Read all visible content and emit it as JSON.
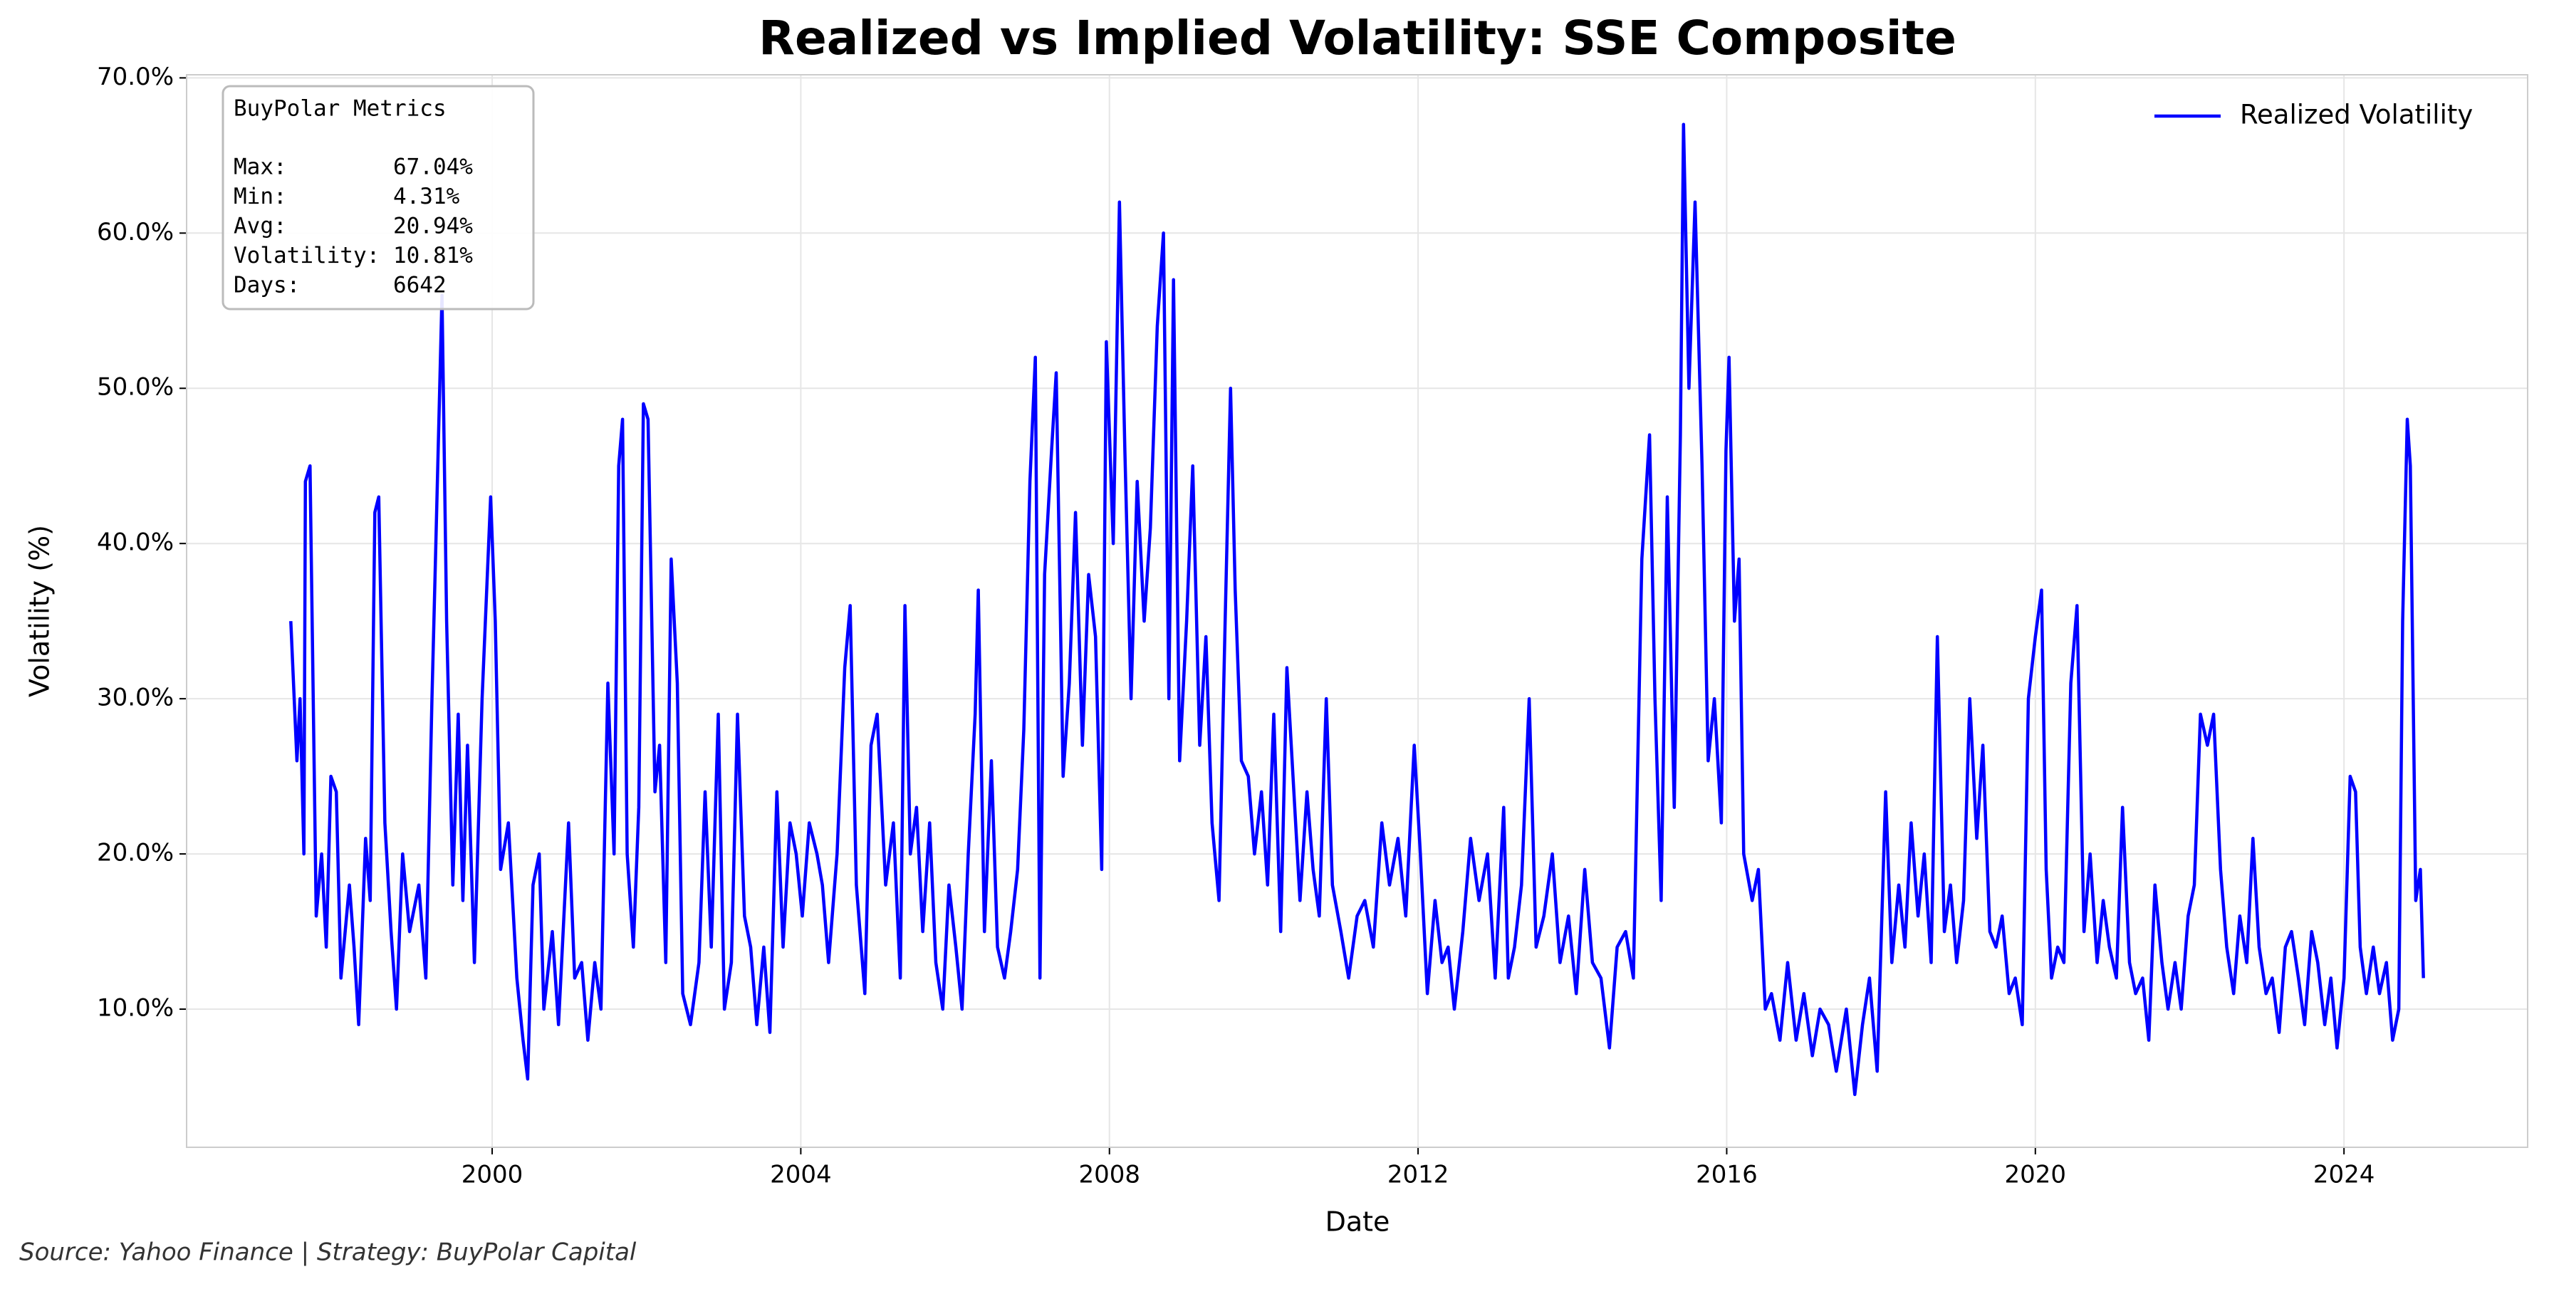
{
  "chart_data": {
    "type": "line",
    "title": "Realized vs Implied Volatility: SSE Composite",
    "x_label": "Date",
    "y_label": "Volatility (%)",
    "source": "Source: Yahoo Finance | Strategy: BuyPolar Capital",
    "metrics_box": [
      "BuyPolar Metrics",
      "Max:        67.04%",
      "Min:        4.31%",
      "Avg:        20.94%",
      "Volatility: 10.81%",
      "Days:       6642"
    ],
    "legend": "upper right",
    "grid": true,
    "xlim": [
      1996.04,
      2026.38
    ],
    "xticks": [
      2000,
      2004,
      2008,
      2012,
      2016,
      2020,
      2024
    ],
    "ylim": [
      1.1,
      70.2
    ],
    "yticks": [
      {
        "value": 10,
        "label": "10.0%"
      },
      {
        "value": 20,
        "label": "20.0%"
      },
      {
        "value": 30,
        "label": "30.0%"
      },
      {
        "value": 40,
        "label": "40.0%"
      },
      {
        "value": 50,
        "label": "50.0%"
      },
      {
        "value": 60,
        "label": "60.0%"
      },
      {
        "value": 70,
        "label": "70.0%"
      }
    ],
    "x": [
      1997.39,
      1997.47,
      1997.51,
      1997.56,
      1997.58,
      1997.64,
      1997.72,
      1997.79,
      1997.85,
      1997.91,
      1997.98,
      1998.04,
      1998.15,
      1998.21,
      1998.27,
      1998.36,
      1998.42,
      1998.48,
      1998.53,
      1998.61,
      1998.69,
      1998.76,
      1998.84,
      1998.93,
      1999.05,
      1999.14,
      1999.22,
      1999.26,
      1999.35,
      1999.41,
      1999.49,
      1999.56,
      1999.62,
      1999.68,
      1999.77,
      1999.87,
      1999.98,
      2000.04,
      2000.11,
      2000.21,
      2000.32,
      2000.4,
      2000.46,
      2000.53,
      2000.61,
      2000.67,
      2000.78,
      2000.86,
      2000.99,
      2001.07,
      2001.16,
      2001.24,
      2001.33,
      2001.41,
      2001.5,
      2001.58,
      2001.64,
      2001.69,
      2001.75,
      2001.83,
      2001.9,
      2001.96,
      2002.02,
      2002.11,
      2002.17,
      2002.25,
      2002.32,
      2002.4,
      2002.47,
      2002.57,
      2002.68,
      2002.76,
      2002.84,
      2002.93,
      2003.01,
      2003.1,
      2003.18,
      2003.27,
      2003.35,
      2003.43,
      2003.52,
      2003.6,
      2003.69,
      2003.77,
      2003.86,
      2003.94,
      2004.02,
      2004.11,
      2004.21,
      2004.28,
      2004.36,
      2004.47,
      2004.57,
      2004.64,
      2004.72,
      2004.83,
      2004.91,
      2004.99,
      2005.1,
      2005.2,
      2005.29,
      2005.35,
      2005.42,
      2005.5,
      2005.58,
      2005.67,
      2005.75,
      2005.84,
      2005.92,
      2006.01,
      2006.09,
      2006.17,
      2006.26,
      2006.3,
      2006.38,
      2006.47,
      2006.55,
      2006.64,
      2006.72,
      2006.81,
      2006.89,
      2006.97,
      2007.04,
      2007.1,
      2007.16,
      2007.25,
      2007.31,
      2007.4,
      2007.48,
      2007.56,
      2007.65,
      2007.73,
      2007.82,
      2007.9,
      2007.96,
      2008.05,
      2008.13,
      2008.2,
      2008.28,
      2008.36,
      2008.45,
      2008.53,
      2008.62,
      2008.7,
      2008.77,
      2008.83,
      2008.91,
      2009.0,
      2009.08,
      2009.17,
      2009.25,
      2009.33,
      2009.42,
      2009.5,
      2009.57,
      2009.63,
      2009.71,
      2009.8,
      2009.88,
      2009.97,
      2010.05,
      2010.13,
      2010.22,
      2010.3,
      2010.39,
      2010.47,
      2010.56,
      2010.64,
      2010.72,
      2010.81,
      2010.89,
      2011.0,
      2011.1,
      2011.21,
      2011.31,
      2011.42,
      2011.53,
      2011.63,
      2011.74,
      2011.84,
      2011.95,
      2012.03,
      2012.12,
      2012.22,
      2012.31,
      2012.39,
      2012.47,
      2012.58,
      2012.68,
      2012.79,
      2012.9,
      2013.0,
      2013.11,
      2013.17,
      2013.25,
      2013.34,
      2013.44,
      2013.53,
      2013.63,
      2013.74,
      2013.84,
      2013.95,
      2014.05,
      2014.16,
      2014.26,
      2014.37,
      2014.48,
      2014.58,
      2014.69,
      2014.79,
      2014.9,
      2015.0,
      2015.07,
      2015.15,
      2015.23,
      2015.32,
      2015.4,
      2015.44,
      2015.51,
      2015.59,
      2015.68,
      2015.76,
      2015.84,
      2015.93,
      2015.99,
      2016.03,
      2016.1,
      2016.16,
      2016.22,
      2016.33,
      2016.41,
      2016.5,
      2016.58,
      2016.69,
      2016.79,
      2016.9,
      2017.0,
      2017.11,
      2017.21,
      2017.32,
      2017.42,
      2017.55,
      2017.66,
      2017.76,
      2017.85,
      2017.95,
      2018.06,
      2018.14,
      2018.23,
      2018.31,
      2018.39,
      2018.48,
      2018.56,
      2018.65,
      2018.73,
      2018.82,
      2018.9,
      2018.98,
      2019.07,
      2019.15,
      2019.24,
      2019.32,
      2019.41,
      2019.49,
      2019.57,
      2019.66,
      2019.74,
      2019.83,
      2019.91,
      2020.0,
      2020.08,
      2020.14,
      2020.21,
      2020.29,
      2020.37,
      2020.46,
      2020.54,
      2020.63,
      2020.71,
      2020.8,
      2020.88,
      2020.96,
      2021.05,
      2021.13,
      2021.22,
      2021.3,
      2021.39,
      2021.47,
      2021.55,
      2021.64,
      2021.72,
      2021.81,
      2021.89,
      2021.98,
      2022.06,
      2022.14,
      2022.23,
      2022.31,
      2022.4,
      2022.48,
      2022.57,
      2022.65,
      2022.74,
      2022.82,
      2022.9,
      2022.99,
      2023.07,
      2023.16,
      2023.24,
      2023.32,
      2023.41,
      2023.49,
      2023.58,
      2023.66,
      2023.75,
      2023.83,
      2023.91,
      2024.0,
      2024.08,
      2024.15,
      2024.21,
      2024.29,
      2024.38,
      2024.46,
      2024.55,
      2024.63,
      2024.71,
      2024.76,
      2024.82,
      2024.86,
      2024.93,
      2024.99,
      2025.03
    ],
    "series": [
      {
        "name": "Realized Volatility",
        "color": "#0000ff",
        "values": [
          35,
          26,
          30,
          20,
          44,
          45,
          16,
          20,
          14,
          25,
          24,
          12,
          18,
          14,
          9,
          21,
          17,
          42,
          43,
          22,
          15,
          10,
          20,
          15,
          18,
          12,
          30,
          38,
          56,
          35,
          18,
          29,
          17,
          27,
          13,
          30,
          43,
          35,
          19,
          22,
          12,
          8,
          5.5,
          18,
          20,
          10,
          15,
          9,
          22,
          12,
          13,
          8,
          13,
          10,
          31,
          20,
          45,
          48,
          20,
          14,
          23,
          49,
          48,
          24,
          27,
          13,
          39,
          31,
          11,
          9,
          13,
          24,
          14,
          29,
          10,
          13,
          29,
          16,
          14,
          9,
          14,
          8.5,
          24,
          14,
          22,
          20,
          16,
          22,
          20,
          18,
          13,
          20,
          32,
          36,
          18,
          11,
          27,
          29,
          18,
          22,
          12,
          36,
          20,
          23,
          15,
          22,
          13,
          10,
          18,
          14,
          10,
          20,
          29,
          37,
          15,
          26,
          14,
          12,
          15,
          19,
          28,
          44,
          52,
          12,
          38,
          46,
          51,
          25,
          31,
          42,
          27,
          38,
          34,
          19,
          53,
          40,
          62,
          46,
          30,
          44,
          35,
          41,
          54,
          60,
          30,
          57,
          26,
          35,
          45,
          27,
          34,
          22,
          17,
          35,
          50,
          37,
          26,
          25,
          20,
          24,
          18,
          29,
          15,
          32,
          24,
          17,
          24,
          19,
          16,
          30,
          18,
          15,
          12,
          16,
          17,
          14,
          22,
          18,
          21,
          16,
          27,
          20,
          11,
          17,
          13,
          14,
          10,
          15,
          21,
          17,
          20,
          12,
          23,
          12,
          14,
          18,
          30,
          14,
          16,
          20,
          13,
          16,
          11,
          19,
          13,
          12,
          7.5,
          14,
          15,
          12,
          39,
          47,
          30,
          17,
          43,
          23,
          47,
          67,
          50,
          62,
          45,
          26,
          30,
          22,
          46,
          52,
          35,
          39,
          20,
          17,
          19,
          10,
          11,
          8,
          13,
          8,
          11,
          7,
          10,
          9,
          6,
          10,
          4.5,
          9,
          12,
          6,
          24,
          13,
          18,
          14,
          22,
          16,
          20,
          13,
          34,
          15,
          18,
          13,
          17,
          30,
          21,
          27,
          15,
          14,
          16,
          11,
          12,
          9,
          30,
          34,
          37,
          19,
          12,
          14,
          13,
          31,
          36,
          15,
          20,
          13,
          17,
          14,
          12,
          23,
          13,
          11,
          12,
          8,
          18,
          13,
          10,
          13,
          10,
          16,
          18,
          29,
          27,
          29,
          19,
          14,
          11,
          16,
          13,
          21,
          14,
          11,
          12,
          8.5,
          14,
          15,
          12,
          9,
          15,
          13,
          9,
          12,
          7.5,
          12,
          25,
          24,
          14,
          11,
          14,
          11,
          13,
          8,
          10,
          35,
          48,
          45,
          17,
          19,
          12
        ]
      }
    ]
  }
}
